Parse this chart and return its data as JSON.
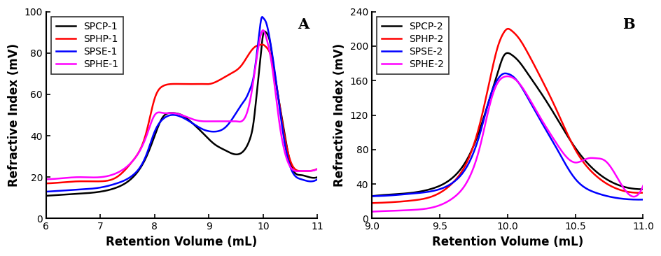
{
  "panel_A": {
    "label": "A",
    "xlabel": "Retention Volume (mL)",
    "ylabel": "Refractive Index (mV)",
    "xlim": [
      6,
      11
    ],
    "ylim": [
      0,
      100
    ],
    "xticks": [
      6,
      7,
      8,
      9,
      10,
      11
    ],
    "yticks": [
      0,
      20,
      40,
      60,
      80,
      100
    ],
    "series": [
      {
        "name": "SPCP-1",
        "color": "#000000",
        "lw": 1.8,
        "x": [
          6.0,
          6.3,
          6.6,
          7.0,
          7.3,
          7.6,
          7.85,
          8.0,
          8.15,
          8.3,
          8.5,
          8.7,
          8.9,
          9.1,
          9.3,
          9.5,
          9.65,
          9.75,
          9.82,
          9.88,
          9.95,
          10.0,
          10.05,
          10.12,
          10.2,
          10.35,
          10.5,
          10.7,
          10.85,
          11.0
        ],
        "y": [
          11,
          11.5,
          12,
          13,
          15,
          20,
          30,
          40,
          49,
          51,
          50,
          46,
          41,
          36,
          33,
          31,
          33,
          38,
          46,
          60,
          78,
          89,
          90,
          86,
          72,
          48,
          27,
          21,
          20,
          20
        ]
      },
      {
        "name": "SPHP-1",
        "color": "#ff0000",
        "lw": 1.8,
        "x": [
          6.0,
          6.3,
          6.6,
          7.0,
          7.3,
          7.6,
          7.85,
          8.0,
          8.15,
          8.3,
          8.5,
          8.7,
          8.9,
          9.0,
          9.2,
          9.4,
          9.6,
          9.75,
          9.85,
          9.95,
          10.0,
          10.05,
          10.15,
          10.3,
          10.5,
          10.7,
          10.85,
          11.0
        ],
        "y": [
          17,
          17.5,
          18,
          18,
          20,
          28,
          42,
          58,
          64,
          65,
          65,
          65,
          65,
          65,
          67,
          70,
          74,
          80,
          83,
          84,
          84,
          83,
          78,
          55,
          28,
          23,
          23,
          24
        ]
      },
      {
        "name": "SPSE-1",
        "color": "#0000ff",
        "lw": 1.8,
        "x": [
          6.0,
          6.3,
          6.6,
          7.0,
          7.3,
          7.6,
          7.85,
          8.0,
          8.15,
          8.3,
          8.5,
          8.7,
          8.9,
          9.1,
          9.3,
          9.4,
          9.5,
          9.6,
          9.7,
          9.75,
          9.82,
          9.88,
          9.93,
          9.97,
          10.0,
          10.05,
          10.12,
          10.25,
          10.4,
          10.55,
          10.7,
          10.85,
          11.0
        ],
        "y": [
          13,
          13.5,
          14,
          15,
          17,
          21,
          31,
          42,
          48,
          50,
          49,
          46,
          43,
          42,
          44,
          47,
          51,
          55,
          59,
          62,
          68,
          79,
          90,
          97,
          97,
          95,
          87,
          64,
          36,
          22,
          19,
          18,
          19
        ]
      },
      {
        "name": "SPHE-1",
        "color": "#ff00ff",
        "lw": 1.8,
        "x": [
          6.0,
          6.3,
          6.6,
          7.0,
          7.3,
          7.6,
          7.85,
          8.0,
          8.15,
          8.3,
          8.5,
          8.7,
          8.9,
          9.0,
          9.1,
          9.2,
          9.3,
          9.4,
          9.5,
          9.6,
          9.7,
          9.78,
          9.85,
          9.92,
          9.97,
          10.0,
          10.05,
          10.15,
          10.3,
          10.5,
          10.7,
          10.85,
          11.0
        ],
        "y": [
          19,
          19.5,
          20,
          20,
          22,
          28,
          40,
          50,
          51,
          51,
          50,
          48,
          47,
          47,
          47,
          47,
          47,
          47,
          47,
          47,
          51,
          60,
          72,
          84,
          90,
          91,
          88,
          76,
          46,
          25,
          23,
          23,
          24
        ]
      }
    ]
  },
  "panel_B": {
    "label": "B",
    "xlabel": "Retention Volume (mL)",
    "ylabel": "Refractive Index (mV)",
    "xlim": [
      9.0,
      11.0
    ],
    "ylim": [
      0,
      240
    ],
    "xticks": [
      9.0,
      9.5,
      10.0,
      10.5,
      11.0
    ],
    "yticks": [
      0,
      40,
      80,
      120,
      160,
      200,
      240
    ],
    "series": [
      {
        "name": "SPCP-2",
        "color": "#000000",
        "lw": 1.8,
        "x": [
          9.0,
          9.15,
          9.3,
          9.45,
          9.6,
          9.7,
          9.8,
          9.88,
          9.93,
          9.97,
          10.0,
          10.03,
          10.08,
          10.15,
          10.25,
          10.35,
          10.5,
          10.65,
          10.8,
          11.0
        ],
        "y": [
          26,
          28,
          30,
          35,
          48,
          68,
          105,
          145,
          170,
          188,
          192,
          190,
          183,
          168,
          145,
          120,
          82,
          55,
          40,
          34
        ]
      },
      {
        "name": "SPHP-2",
        "color": "#ff0000",
        "lw": 1.8,
        "x": [
          9.0,
          9.15,
          9.3,
          9.45,
          9.6,
          9.7,
          9.8,
          9.88,
          9.93,
          9.97,
          10.0,
          10.03,
          10.08,
          10.15,
          10.25,
          10.35,
          10.5,
          10.65,
          10.8,
          11.0
        ],
        "y": [
          18,
          19,
          21,
          26,
          42,
          65,
          112,
          168,
          200,
          215,
          220,
          218,
          210,
          192,
          162,
          130,
          80,
          50,
          35,
          30
        ]
      },
      {
        "name": "SPSE-2",
        "color": "#0000ff",
        "lw": 1.8,
        "x": [
          9.0,
          9.15,
          9.3,
          9.45,
          9.6,
          9.7,
          9.8,
          9.88,
          9.93,
          9.97,
          10.0,
          10.03,
          10.08,
          10.15,
          10.25,
          10.35,
          10.5,
          10.65,
          10.8,
          11.0
        ],
        "y": [
          26,
          27,
          29,
          32,
          42,
          60,
          100,
          145,
          162,
          168,
          168,
          166,
          158,
          140,
          112,
          85,
          46,
          30,
          24,
          22
        ]
      },
      {
        "name": "SPHE-2",
        "color": "#ff00ff",
        "lw": 1.8,
        "x": [
          9.0,
          9.15,
          9.3,
          9.45,
          9.6,
          9.7,
          9.8,
          9.88,
          9.93,
          9.97,
          10.0,
          10.03,
          10.08,
          10.15,
          10.25,
          10.35,
          10.5,
          10.55,
          10.6,
          10.65,
          10.72,
          10.8,
          11.0
        ],
        "y": [
          8,
          9,
          10,
          13,
          24,
          42,
          85,
          138,
          158,
          164,
          165,
          164,
          158,
          142,
          115,
          90,
          65,
          67,
          70,
          70,
          67,
          50,
          38
        ]
      }
    ]
  },
  "label_fontsize": 12,
  "tick_fontsize": 10,
  "legend_fontsize": 10,
  "panel_label_fontsize": 15
}
